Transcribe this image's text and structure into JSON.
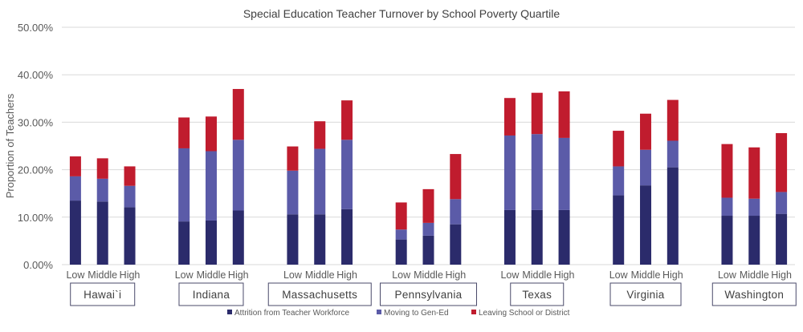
{
  "chart_data": {
    "type": "bar",
    "stacked": true,
    "title": "Special Education Teacher Turnover by School Poverty Quartile",
    "ylabel": "Proportion of Teachers",
    "xlabel": "",
    "ylim": [
      0,
      50
    ],
    "yticks": [
      "0.00%",
      "10.00%",
      "20.00%",
      "30.00%",
      "40.00%",
      "50.00%"
    ],
    "grid": true,
    "legend_position": "bottom",
    "sub_categories": [
      "Low",
      "Middle",
      "High"
    ],
    "groups": [
      "Hawai`i",
      "Indiana",
      "Massachusetts",
      "Pennsylvania",
      "Texas",
      "Virginia",
      "Washington"
    ],
    "series": [
      {
        "name": "Attrition from Teacher Workforce",
        "color": "#2b2b6b",
        "values": [
          [
            13.5,
            13.3,
            12.1
          ],
          [
            9.1,
            9.3,
            11.4
          ],
          [
            10.6,
            10.6,
            11.7
          ],
          [
            5.3,
            6.1,
            8.5
          ],
          [
            11.5,
            11.5,
            11.5
          ],
          [
            14.6,
            16.7,
            20.5
          ],
          [
            10.3,
            10.3,
            10.7
          ]
        ]
      },
      {
        "name": "Moving to Gen-Ed",
        "color": "#5b5ba8",
        "values": [
          [
            5.1,
            4.8,
            4.5
          ],
          [
            15.4,
            14.6,
            14.9
          ],
          [
            9.2,
            13.8,
            14.6
          ],
          [
            2.1,
            2.7,
            5.3
          ],
          [
            15.7,
            16.0,
            15.2
          ],
          [
            6.1,
            7.5,
            5.6
          ],
          [
            3.8,
            3.6,
            4.6
          ]
        ]
      },
      {
        "name": "Leaving School or District",
        "color": "#c01c2e",
        "values": [
          [
            4.2,
            4.3,
            4.1
          ],
          [
            6.5,
            7.3,
            10.7
          ],
          [
            5.1,
            5.8,
            8.3
          ],
          [
            5.7,
            7.1,
            9.5
          ],
          [
            7.9,
            8.7,
            9.8
          ],
          [
            7.5,
            7.6,
            8.6
          ],
          [
            11.3,
            10.8,
            12.4
          ]
        ]
      }
    ]
  }
}
